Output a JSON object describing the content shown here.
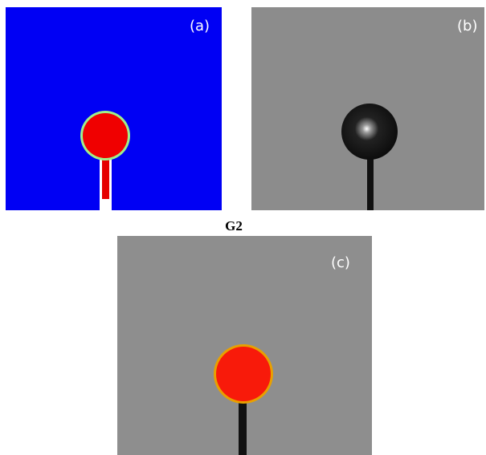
{
  "panels": [
    {
      "label": "(a)"
    },
    {
      "label": "(b)"
    },
    {
      "label": "(c)"
    }
  ],
  "caption": "G2"
}
